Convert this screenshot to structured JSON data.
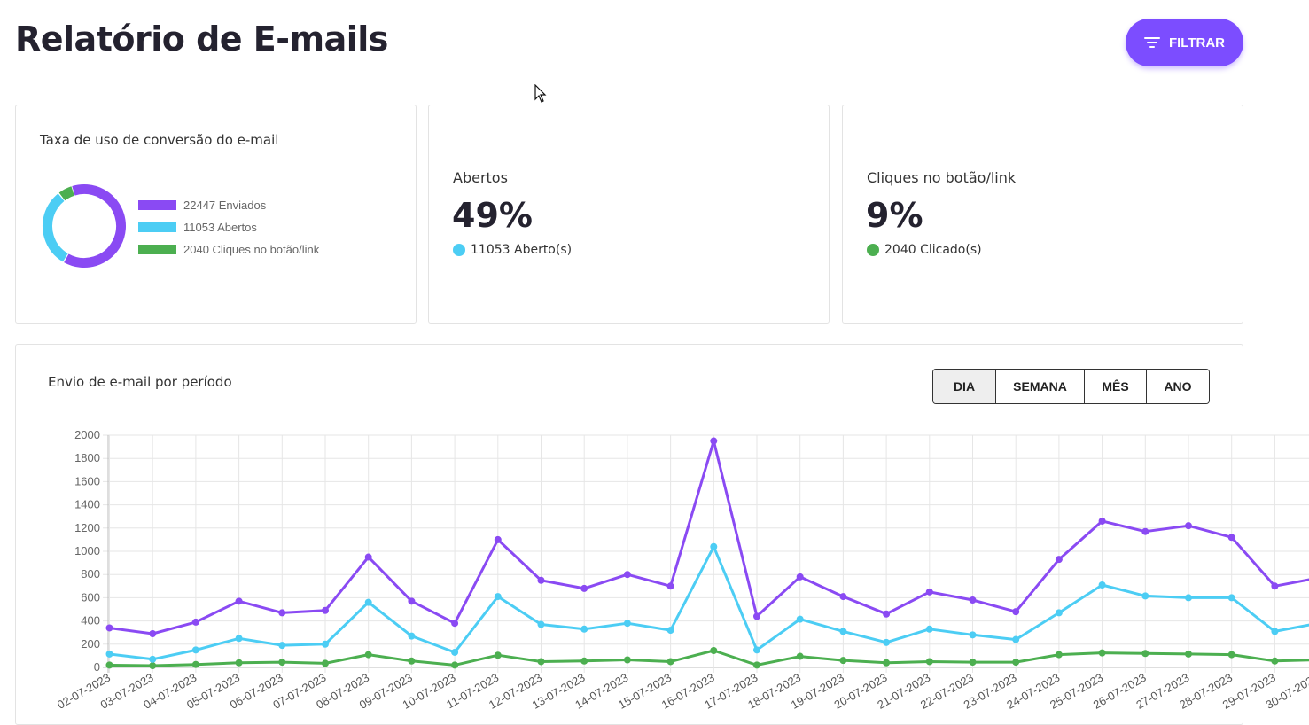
{
  "header": {
    "title": "Relatório de E-mails",
    "filter_label": "FILTRAR"
  },
  "conversion_card": {
    "title": "Taxa de uso de conversão do e-mail",
    "legend": [
      {
        "label": "22447 Enviados",
        "value": 22447,
        "color": "#8a4af3"
      },
      {
        "label": "11053 Abertos",
        "value": 11053,
        "color": "#4ccdf4"
      },
      {
        "label": "2040 Cliques no botão/link",
        "value": 2040,
        "color": "#4caf50"
      }
    ]
  },
  "opened_card": {
    "label": "Abertos",
    "value": "49%",
    "sub": "11053 Aberto(s)",
    "color": "#4ccdf4"
  },
  "clicks_card": {
    "label": "Cliques no botão/link",
    "value": "9%",
    "sub": "2040 Clicado(s)",
    "color": "#4caf50"
  },
  "period_card": {
    "title": "Envio de e-mail por período",
    "buttons": [
      "DIA",
      "SEMANA",
      "MÊS",
      "ANO"
    ],
    "active": "DIA"
  },
  "chart_data": {
    "type": "line",
    "title": "Envio de e-mail por período",
    "categories": [
      "02-07-2023",
      "03-07-2023",
      "04-07-2023",
      "05-07-2023",
      "06-07-2023",
      "07-07-2023",
      "08-07-2023",
      "09-07-2023",
      "10-07-2023",
      "11-07-2023",
      "12-07-2023",
      "13-07-2023",
      "14-07-2023",
      "15-07-2023",
      "16-07-2023",
      "17-07-2023",
      "18-07-2023",
      "19-07-2023",
      "20-07-2023",
      "21-07-2023",
      "22-07-2023",
      "23-07-2023",
      "24-07-2023",
      "25-07-2023",
      "26-07-2023",
      "27-07-2023",
      "28-07-2023",
      "29-07-2023",
      "30-07-2023"
    ],
    "series": [
      {
        "color": "#8a4af3",
        "values": [
          340,
          290,
          390,
          570,
          470,
          490,
          950,
          570,
          380,
          1100,
          750,
          680,
          800,
          700,
          1950,
          440,
          780,
          610,
          460,
          650,
          580,
          480,
          930,
          1260,
          1170,
          1220,
          1120,
          700,
          770
        ]
      },
      {
        "color": "#4ccdf4",
        "values": [
          115,
          70,
          150,
          250,
          190,
          200,
          560,
          270,
          130,
          610,
          370,
          330,
          380,
          320,
          1040,
          150,
          415,
          310,
          215,
          330,
          280,
          240,
          470,
          710,
          615,
          600,
          600,
          310,
          380
        ]
      },
      {
        "color": "#4caf50",
        "values": [
          20,
          15,
          25,
          40,
          45,
          35,
          110,
          55,
          20,
          105,
          50,
          55,
          65,
          50,
          145,
          20,
          95,
          60,
          40,
          50,
          45,
          45,
          110,
          125,
          120,
          115,
          110,
          55,
          65
        ]
      }
    ],
    "ylim": [
      0,
      2000
    ],
    "yticks": [
      0,
      200,
      400,
      600,
      800,
      1000,
      1200,
      1400,
      1600,
      1800,
      2000
    ],
    "grid": true,
    "legend": "none"
  }
}
